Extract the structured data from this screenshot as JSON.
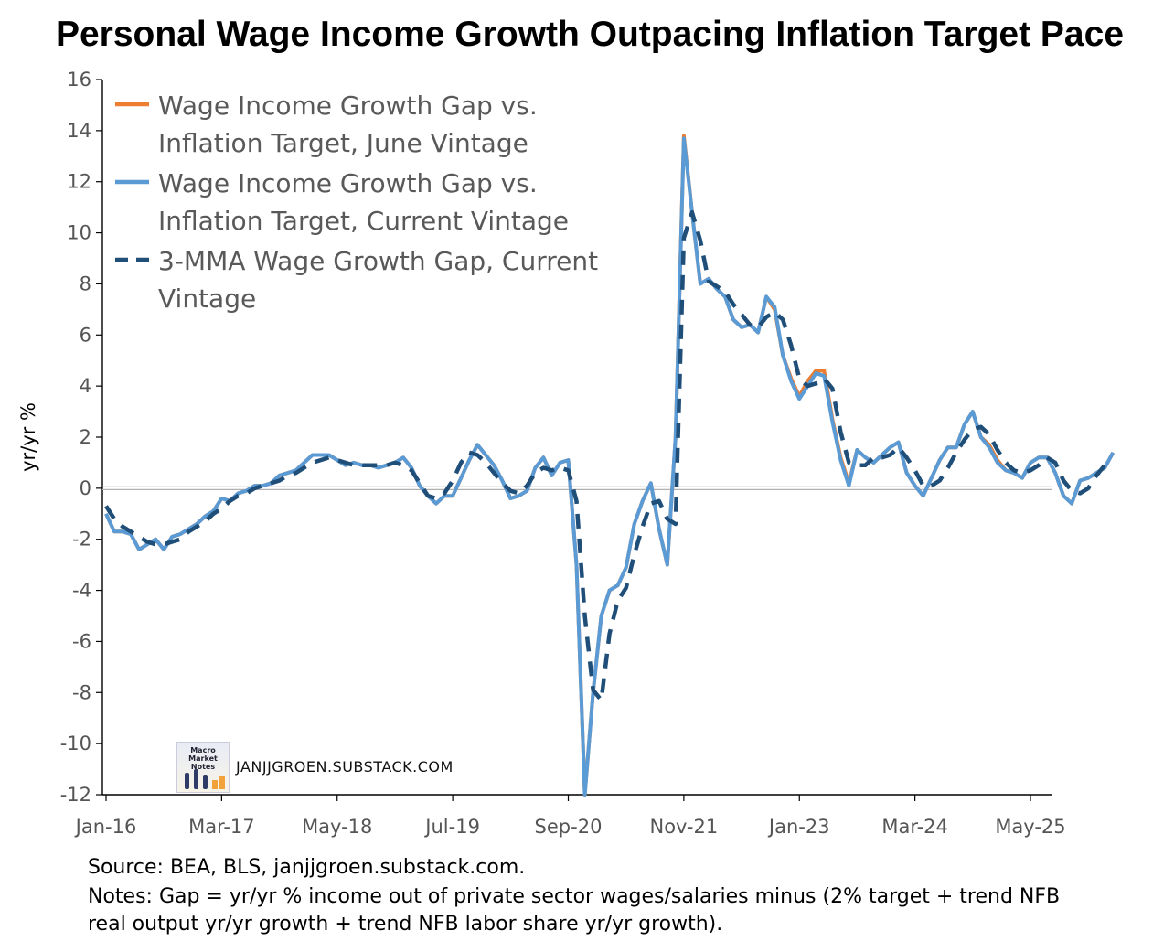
{
  "title": "Personal Wage Income Growth Outpacing Inflation Target Pace",
  "source": "Source: BEA, BLS, janjjgroen.substack.com.",
  "notes": "Notes: Gap = yr/yr % income out of private sector wages/salaries minus (2% target + trend NFB real output yr/yr growth + trend NFB labor share yr/yr growth).",
  "watermark": "JANJJGROEN.SUBSTACK.COM",
  "logo_text": "Macro Market Notes",
  "colors": {
    "june": "#ED7D31",
    "current": "#5B9BD5",
    "mma": "#1F4E79",
    "zero": "#b0b0b0"
  },
  "chart_data": {
    "type": "line",
    "ylabel": "yr/yr %",
    "ylim": [
      -12,
      16
    ],
    "yticks": [
      16,
      14,
      12,
      10,
      8,
      6,
      4,
      2,
      0,
      -2,
      -4,
      -6,
      -8,
      -10,
      -12
    ],
    "xtick_labels": [
      "Jan-16",
      "Mar-17",
      "May-18",
      "Jul-19",
      "Sep-20",
      "Nov-21",
      "Jan-23",
      "Mar-24",
      "May-25"
    ],
    "xtick_month_index": [
      0,
      14,
      28,
      42,
      56,
      70,
      84,
      98,
      112
    ],
    "legend": [
      "Wage Income Growth Gap vs. Inflation Target, June Vintage",
      "Wage Income Growth Gap vs. Inflation Target, Current Vintage",
      "3-MMA Wage Growth Gap, Current Vintage"
    ],
    "series": [
      {
        "name": "Wage Income Growth Gap vs. Inflation Target, June Vintage",
        "start_index": 0,
        "values": [
          -1.0,
          -1.7,
          -1.7,
          -1.8,
          -2.4,
          -2.2,
          -2.0,
          -2.4,
          -1.9,
          -1.8,
          -1.6,
          -1.4,
          -1.1,
          -0.9,
          -0.4,
          -0.5,
          -0.2,
          -0.1,
          0.1,
          0.1,
          0.2,
          0.5,
          0.6,
          0.7,
          1.0,
          1.3,
          1.3,
          1.3,
          1.1,
          0.9,
          1.0,
          0.9,
          0.9,
          0.8,
          0.9,
          1.0,
          1.2,
          0.8,
          0.1,
          -0.3,
          -0.6,
          -0.3,
          -0.3,
          0.4,
          1.1,
          1.7,
          1.3,
          0.9,
          0.3,
          -0.4,
          -0.3,
          -0.1,
          0.8,
          1.2,
          0.5,
          1.0,
          1.1,
          -3.0,
          -12.0,
          -8.0,
          -5.0,
          -4.0,
          -3.8,
          -3.1,
          -1.4,
          -0.5,
          0.2,
          -1.6,
          -3.0,
          2.0,
          13.8,
          10.8,
          8.0,
          8.2,
          7.8,
          7.5,
          6.6,
          6.3,
          6.4,
          6.1,
          7.5,
          7.0,
          5.2,
          4.3,
          3.6,
          4.2,
          4.6,
          4.6,
          2.7,
          1.2,
          0.2,
          1.5,
          1.2,
          1.0,
          1.3,
          1.6,
          1.8,
          0.6,
          0.1,
          -0.3,
          0.4,
          1.1,
          1.6,
          1.6,
          2.5,
          3.0,
          2.0,
          1.7,
          1.1,
          0.7,
          0.6,
          0.4,
          1.0,
          1.2,
          1.2,
          0.6,
          -0.3,
          -0.6,
          0.3,
          0.4,
          0.6,
          0.8,
          1.4
        ]
      },
      {
        "name": "Wage Income Growth Gap vs. Inflation Target, Current Vintage",
        "start_index": 0,
        "values": [
          -1.0,
          -1.7,
          -1.7,
          -1.8,
          -2.4,
          -2.2,
          -2.0,
          -2.4,
          -1.9,
          -1.8,
          -1.6,
          -1.4,
          -1.1,
          -0.9,
          -0.4,
          -0.5,
          -0.2,
          -0.1,
          0.1,
          0.1,
          0.2,
          0.5,
          0.6,
          0.7,
          1.0,
          1.3,
          1.3,
          1.3,
          1.1,
          0.9,
          1.0,
          0.9,
          0.9,
          0.8,
          0.9,
          1.0,
          1.2,
          0.8,
          0.1,
          -0.3,
          -0.6,
          -0.3,
          -0.3,
          0.4,
          1.1,
          1.7,
          1.3,
          0.9,
          0.3,
          -0.4,
          -0.3,
          -0.1,
          0.8,
          1.2,
          0.5,
          1.0,
          1.1,
          -3.0,
          -12.0,
          -8.0,
          -5.0,
          -4.0,
          -3.8,
          -3.1,
          -1.4,
          -0.5,
          0.2,
          -1.6,
          -3.0,
          2.0,
          13.7,
          10.8,
          8.0,
          8.2,
          7.8,
          7.5,
          6.6,
          6.3,
          6.4,
          6.1,
          7.5,
          7.1,
          5.2,
          4.2,
          3.5,
          4.0,
          4.5,
          4.4,
          2.6,
          1.1,
          0.1,
          1.5,
          1.2,
          1.0,
          1.3,
          1.6,
          1.8,
          0.6,
          0.1,
          -0.3,
          0.4,
          1.1,
          1.6,
          1.6,
          2.5,
          3.0,
          2.0,
          1.6,
          1.0,
          0.7,
          0.6,
          0.4,
          1.0,
          1.2,
          1.2,
          0.6,
          -0.3,
          -0.6,
          0.3,
          0.4,
          0.6,
          0.8,
          1.4
        ]
      },
      {
        "name": "3-MMA Wage Growth Gap, Current Vintage",
        "start_index": 0,
        "values": [
          -0.7,
          -1.2,
          -1.5,
          -1.7,
          -1.9,
          -2.1,
          -2.2,
          -2.2,
          -2.1,
          -2.0,
          -1.7,
          -1.5,
          -1.3,
          -1.0,
          -0.8,
          -0.5,
          -0.3,
          -0.2,
          0.0,
          0.1,
          0.2,
          0.3,
          0.5,
          0.6,
          0.8,
          1.0,
          1.1,
          1.2,
          1.1,
          1.0,
          0.9,
          0.9,
          0.9,
          0.9,
          0.9,
          1.0,
          0.9,
          0.7,
          0.2,
          -0.3,
          -0.4,
          -0.2,
          0.3,
          1.0,
          1.4,
          1.3,
          1.0,
          0.6,
          0.2,
          -0.1,
          -0.2,
          0.1,
          0.6,
          0.8,
          0.7,
          0.8,
          0.7,
          -0.5,
          -5.0,
          -7.9,
          -8.3,
          -5.7,
          -4.4,
          -3.9,
          -2.6,
          -1.5,
          -0.6,
          -0.5,
          -1.2,
          -1.4,
          9.8,
          10.8,
          9.7,
          8.1,
          7.9,
          7.7,
          7.2,
          6.8,
          6.4,
          6.3,
          6.7,
          6.9,
          6.6,
          5.6,
          4.3,
          4.0,
          4.1,
          4.3,
          3.9,
          2.2,
          1.0,
          0.9,
          0.9,
          1.2,
          1.2,
          1.3,
          1.6,
          1.2,
          0.7,
          0.1,
          0.1,
          0.3,
          0.8,
          1.4,
          1.9,
          2.3,
          2.4,
          2.1,
          1.5,
          1.0,
          0.7,
          0.6,
          0.7,
          0.9,
          1.2,
          1.0,
          0.3,
          -0.1,
          -0.2,
          0.0,
          0.5,
          0.9
        ]
      }
    ]
  }
}
